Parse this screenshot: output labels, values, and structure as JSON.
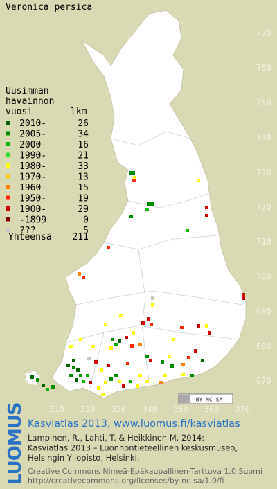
{
  "title": "Veronica persica",
  "legend": {
    "heading": [
      "Uusimman",
      "havainnon"
    ],
    "col_year": "vuosi",
    "col_count": "lkm",
    "rows": [
      {
        "label": "2010-",
        "count": 26,
        "color": "#006400"
      },
      {
        "label": "2005-",
        "count": 34,
        "color": "#008c00"
      },
      {
        "label": "2000-",
        "count": 16,
        "color": "#00b400"
      },
      {
        "label": "1990-",
        "count": 21,
        "color": "#33dd33"
      },
      {
        "label": "1980-",
        "count": 33,
        "color": "#ffff00"
      },
      {
        "label": "1970-",
        "count": 13,
        "color": "#ffcc00"
      },
      {
        "label": "1960-",
        "count": 15,
        "color": "#ff8000"
      },
      {
        "label": "1950-",
        "count": 19,
        "color": "#ff2a00"
      },
      {
        "label": "1900-",
        "count": 29,
        "color": "#cc0000"
      },
      {
        "label": "-1899",
        "count": 0,
        "color": "#800000"
      },
      {
        "label": "???",
        "count": 5,
        "color": "#c8c8c8"
      }
    ],
    "total_label": "Yhteensä",
    "total": 211
  },
  "axes": {
    "y_labels": [
      770,
      760,
      750,
      740,
      730,
      720,
      710,
      700,
      690,
      680,
      670
    ],
    "x_labels": [
      310,
      320,
      330,
      340,
      350,
      360,
      370
    ]
  },
  "badge": "BY-NC-SA",
  "footer": {
    "logo": "LUOMUS",
    "headline": "Kasviatlas 2013, www.luomus.fi/kasviatlas",
    "citation": [
      "Lampinen, R., Lahti, T. & Heikkinen M. 2014:",
      "Kasviatlas 2013 – Luonnontieteellinen keskusmuseo,",
      "Helsingin Yliopisto, Helsinki."
    ],
    "license": [
      "Creative Commons Nimeä-Epäkaupallinen-Tarttuva 1.0 Suomi",
      "http://creativecommons.org/licenses/by-nc-sa/1.0/fi"
    ]
  }
}
